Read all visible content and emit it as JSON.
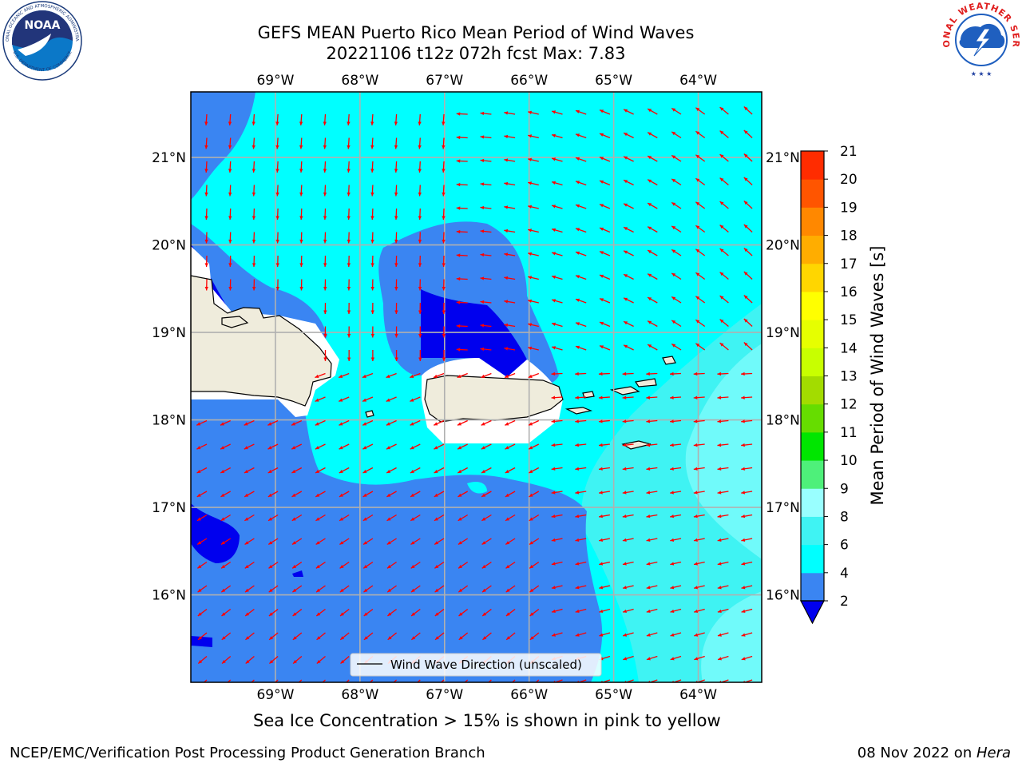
{
  "title": {
    "line1": "GEFS MEAN Puerto Rico Mean Period of Wind Waves",
    "line2": "20221106 t12z 072h fcst   Max: 7.83"
  },
  "map": {
    "lon_ticks": [
      "69°W",
      "68°W",
      "67°W",
      "66°W",
      "65°W",
      "64°W"
    ],
    "lat_ticks": [
      "21°N",
      "20°N",
      "19°N",
      "18°N",
      "17°N",
      "16°N"
    ],
    "lon_range": [
      -70,
      -63.25
    ],
    "lat_range": [
      15,
      21.75
    ],
    "legend_label": "Wind Wave Direction (unscaled)",
    "arrow_color": "#ff0000",
    "land_color": "#efecdc"
  },
  "colorbar": {
    "label": "Mean Period of Wind Waves [s]",
    "ticks": [
      "2",
      "4",
      "6",
      "8",
      "9",
      "10",
      "11",
      "12",
      "13",
      "14",
      "15",
      "16",
      "17",
      "18",
      "19",
      "20",
      "21"
    ],
    "colors": [
      "#3a85f2",
      "#00ffff",
      "#3ff3f3",
      "#99ffff",
      "#4ef07a",
      "#00e600",
      "#66dd00",
      "#a3dc00",
      "#c8ff00",
      "#e6ff00",
      "#ffff00",
      "#ffd600",
      "#ffad00",
      "#ff8800",
      "#ff5500",
      "#ff2c00",
      "#ff0000"
    ],
    "under_color": "#0000ee"
  },
  "caption": "Sea Ice Concentration > 15% is shown in pink to yellow",
  "footer": {
    "left": "NCEP/EMC/Verification Post Processing Product Generation Branch",
    "date": "08 Nov 2022 on ",
    "machine": "Hera"
  },
  "logos": {
    "noaa": "NOAA",
    "noaa_ring_top": "NATIONAL OCEANIC AND ATMOSPHERIC ADMINISTRATION",
    "noaa_ring_bottom": "U.S. DEPARTMENT OF COMMERCE",
    "nws_ring": "NATIONAL WEATHER SERVICE"
  }
}
